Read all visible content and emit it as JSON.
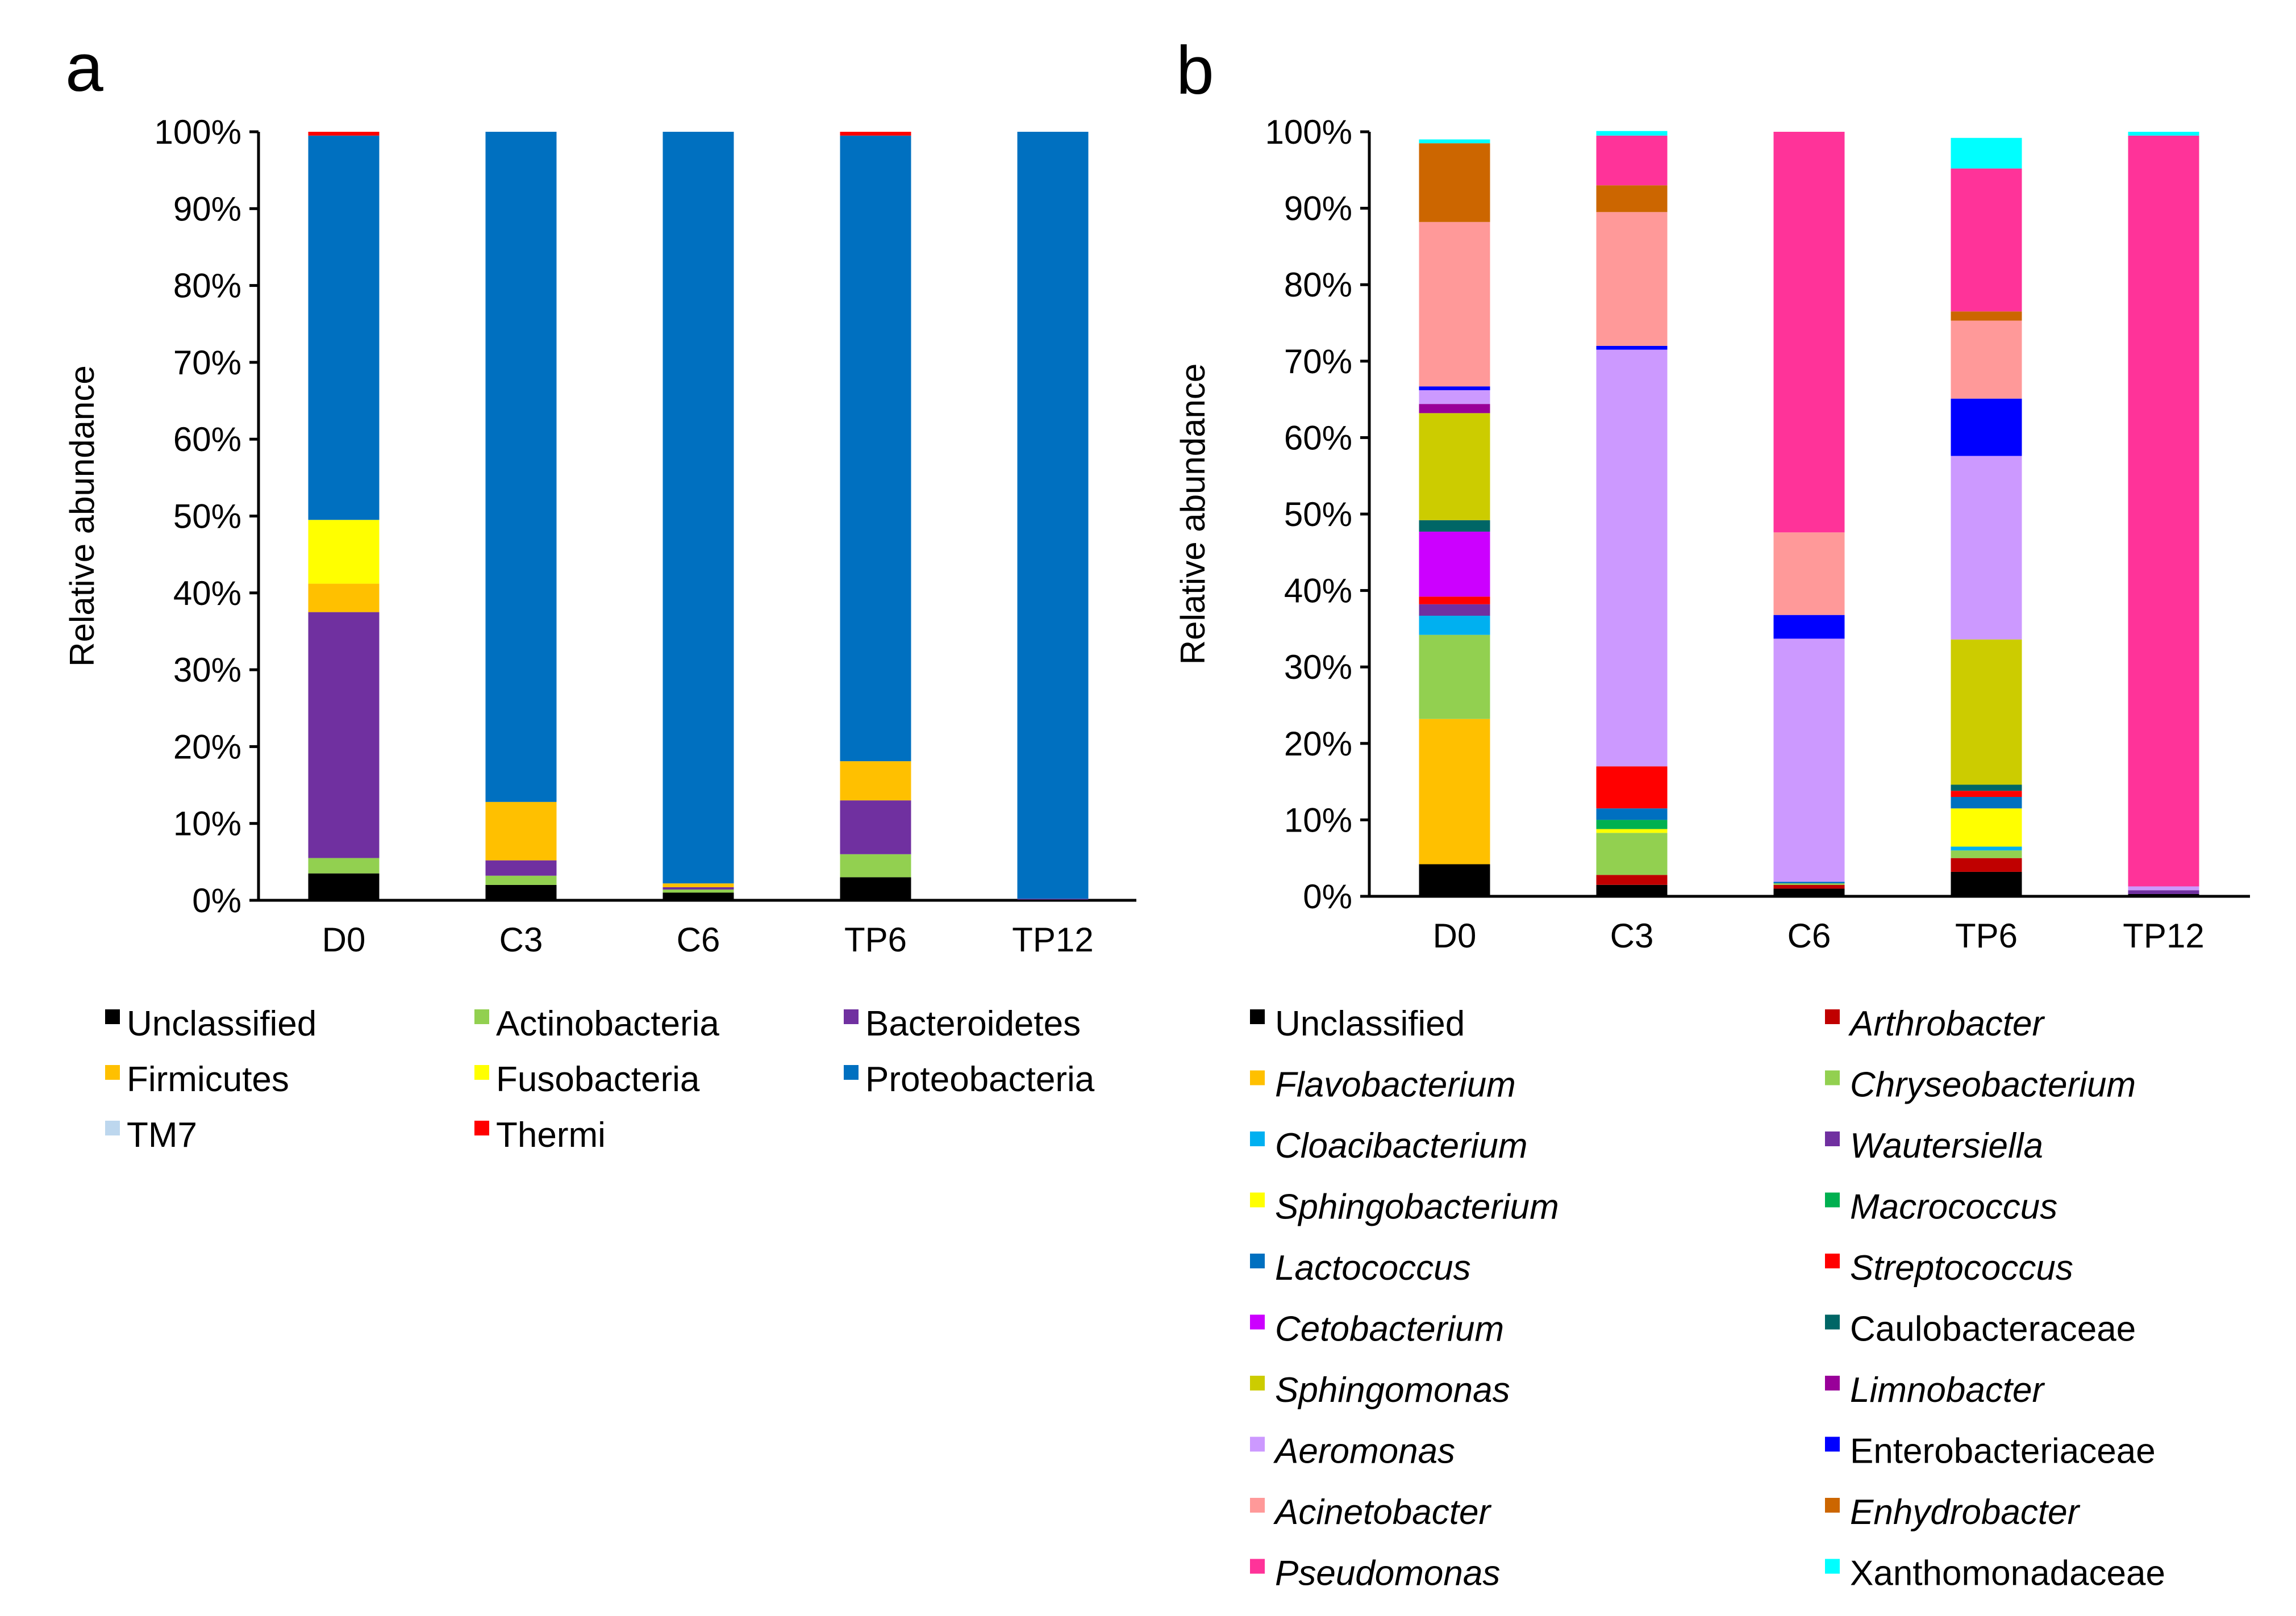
{
  "panels": [
    "a",
    "b"
  ],
  "chart_data": [
    {
      "type": "bar",
      "stacked": true,
      "panel": "a",
      "ylabel": "Relative abundance",
      "ylim": [
        0,
        100
      ],
      "yticks": [
        "0%",
        "10%",
        "20%",
        "30%",
        "40%",
        "50%",
        "60%",
        "70%",
        "80%",
        "90%",
        "100%"
      ],
      "categories": [
        "D0",
        "C3",
        "C6",
        "TP6",
        "TP12"
      ],
      "legend_columns": 3,
      "series": [
        {
          "name": "Unclassified",
          "color": "#000000",
          "italic": false,
          "values": [
            3.5,
            2.0,
            1.0,
            3.0,
            0.1
          ]
        },
        {
          "name": "Actinobacteria",
          "color": "#92d050",
          "italic": false,
          "values": [
            2.0,
            1.2,
            0.4,
            3.0,
            0.0
          ]
        },
        {
          "name": "Bacteroidetes",
          "color": "#7030a0",
          "italic": false,
          "values": [
            32.0,
            2.0,
            0.3,
            7.0,
            0.1
          ]
        },
        {
          "name": "Firmicutes",
          "color": "#ffc000",
          "italic": false,
          "values": [
            3.7,
            7.6,
            0.5,
            5.1,
            0.0
          ]
        },
        {
          "name": "Fusobacteria",
          "color": "#ffff00",
          "italic": false,
          "values": [
            8.3,
            0.0,
            0.0,
            0.0,
            0.0
          ]
        },
        {
          "name": "Proteobacteria",
          "color": "#0070c0",
          "italic": false,
          "values": [
            50.0,
            87.2,
            97.8,
            81.4,
            99.8
          ]
        },
        {
          "name": "TM7",
          "color": "#bdd7ee",
          "italic": false,
          "values": [
            0.0,
            0.0,
            0.0,
            0.0,
            0.0
          ]
        },
        {
          "name": "Thermi",
          "color": "#ff0000",
          "italic": false,
          "values": [
            0.5,
            0.0,
            0.0,
            0.5,
            0.0
          ]
        }
      ]
    },
    {
      "type": "bar",
      "stacked": true,
      "panel": "b",
      "ylabel": "Relative abundance",
      "ylim": [
        0,
        100
      ],
      "yticks": [
        "0%",
        "10%",
        "20%",
        "30%",
        "40%",
        "50%",
        "60%",
        "70%",
        "80%",
        "90%",
        "100%"
      ],
      "categories": [
        "D0",
        "C3",
        "C6",
        "TP6",
        "TP12"
      ],
      "legend_columns": 2,
      "series": [
        {
          "name": "Unclassified",
          "color": "#000000",
          "italic": false,
          "values": [
            4.2,
            1.5,
            1.0,
            3.2,
            0.3
          ]
        },
        {
          "name": "Arthrobacter",
          "color": "#c00000",
          "italic": true,
          "values": [
            0.0,
            1.3,
            0.5,
            1.8,
            0.0
          ]
        },
        {
          "name": "Flavobacterium",
          "color": "#ffc000",
          "italic": true,
          "values": [
            19.0,
            0.0,
            0.0,
            0.0,
            0.0
          ]
        },
        {
          "name": "Chryseobacterium",
          "color": "#92d050",
          "italic": true,
          "values": [
            11.0,
            5.5,
            0.2,
            1.0,
            0.0
          ]
        },
        {
          "name": "Cloacibacterium",
          "color": "#00b0f0",
          "italic": true,
          "values": [
            2.5,
            0.0,
            0.0,
            0.5,
            0.0
          ]
        },
        {
          "name": "Wautersiella",
          "color": "#7030a0",
          "italic": true,
          "values": [
            1.5,
            0.0,
            0.0,
            0.0,
            0.5
          ]
        },
        {
          "name": "Sphingobacterium",
          "color": "#ffff00",
          "italic": true,
          "values": [
            0.0,
            0.5,
            0.0,
            5.0,
            0.0
          ]
        },
        {
          "name": "Macrococcus",
          "color": "#00b050",
          "italic": true,
          "values": [
            0.0,
            1.2,
            0.0,
            0.0,
            0.0
          ]
        },
        {
          "name": "Lactococcus",
          "color": "#0070c0",
          "italic": true,
          "values": [
            0.0,
            1.5,
            0.2,
            1.5,
            0.0
          ]
        },
        {
          "name": "Streptococcus",
          "color": "#ff0000",
          "italic": true,
          "values": [
            1.0,
            5.5,
            0.0,
            0.8,
            0.0
          ]
        },
        {
          "name": "Cetobacterium",
          "color": "#cc00ff",
          "italic": true,
          "values": [
            8.5,
            0.0,
            0.0,
            0.0,
            0.0
          ]
        },
        {
          "name": "Caulobacteraceae",
          "color": "#006666",
          "italic": false,
          "values": [
            1.5,
            0.0,
            0.0,
            0.8,
            0.0
          ]
        },
        {
          "name": "Sphingomonas",
          "color": "#cccc00",
          "italic": true,
          "values": [
            14.0,
            0.0,
            0.0,
            19.0,
            0.0
          ]
        },
        {
          "name": "Limnobacter",
          "color": "#990099",
          "italic": true,
          "values": [
            1.2,
            0.0,
            0.0,
            0.0,
            0.0
          ]
        },
        {
          "name": "Aeromonas",
          "color": "#cc99ff",
          "italic": true,
          "values": [
            1.8,
            54.5,
            31.8,
            24.0,
            0.5
          ]
        },
        {
          "name": "Enterobacteriaceae",
          "color": "#0000ff",
          "italic": false,
          "values": [
            0.5,
            0.5,
            3.1,
            7.5,
            0.0
          ]
        },
        {
          "name": "Acinetobacter",
          "color": "#ff9999",
          "italic": true,
          "values": [
            21.5,
            17.5,
            10.8,
            10.2,
            0.0
          ]
        },
        {
          "name": "Enhydrobacter",
          "color": "#cc6600",
          "italic": true,
          "values": [
            10.3,
            3.5,
            0.0,
            1.2,
            0.0
          ]
        },
        {
          "name": "Pseudomonas",
          "color": "#ff3399",
          "italic": true,
          "values": [
            0.0,
            6.5,
            52.4,
            18.7,
            98.2
          ]
        },
        {
          "name": "Xanthomonadaceae",
          "color": "#00ffff",
          "italic": false,
          "values": [
            0.5,
            0.6,
            0.0,
            4.0,
            0.5
          ]
        }
      ]
    }
  ]
}
